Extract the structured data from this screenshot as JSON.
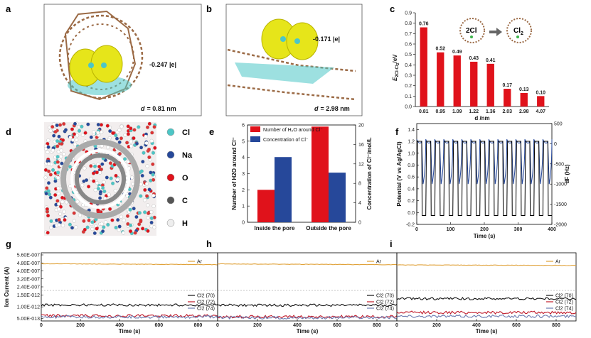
{
  "colors": {
    "red": "#e0121b",
    "blue": "#26489a",
    "ar": "#e0a23a",
    "cl70": "#111111",
    "cl72": "#c01a2a",
    "cl74": "#6b7bb0",
    "black": "#000000",
    "cyan": "#4cc6c6",
    "yellow": "#e6e51a",
    "brown": "#9b6a45"
  },
  "panels": {
    "a": {
      "label": "a",
      "charge": "-0.247 |e|",
      "d_prefix": "d",
      "d_value": "= 0.81 nm"
    },
    "b": {
      "label": "b",
      "charge": "-0.171 |e|",
      "d_prefix": "d",
      "d_value": "= 2.98 nm"
    },
    "c": {
      "label": "c",
      "inset_left": "2Cl",
      "inset_right": "Cl",
      "inset_right_sub": "2"
    },
    "d": {
      "label": "d",
      "legend": [
        {
          "name": "Cl",
          "color": "#4cc6c6"
        },
        {
          "name": "Na",
          "color": "#26489a"
        },
        {
          "name": "O",
          "color": "#e0121b"
        },
        {
          "name": "C",
          "color": "#555555"
        },
        {
          "name": "H",
          "color": "#eeeeee"
        }
      ]
    },
    "e": {
      "label": "e"
    },
    "f": {
      "label": "f"
    },
    "g": {
      "label": "g"
    },
    "h": {
      "label": "h"
    },
    "i": {
      "label": "i"
    }
  },
  "chart_data": [
    {
      "id": "c",
      "type": "bar",
      "categories": [
        "0.81",
        "0.95",
        "1.09",
        "1.22",
        "1.36",
        "2.03",
        "2.98",
        "4.07"
      ],
      "values": [
        0.76,
        0.52,
        0.49,
        0.43,
        0.41,
        0.17,
        0.13,
        0.1
      ],
      "value_labels": [
        "0.76",
        "0.52",
        "0.49",
        "0.43",
        "0.41",
        "0.17",
        "0.13",
        "0.10"
      ],
      "ylabel": "E2Cl-Cl2/eV",
      "ylabel_main": "E",
      "ylabel_sub": "2Cl-Cl",
      "ylabel_sub2": "2",
      "ylabel_unit": "/eV",
      "xlabel": "d /nm",
      "ylim": [
        0,
        0.9
      ],
      "yticks": [
        "0.0",
        "0.1",
        "0.2",
        "0.3",
        "0.4",
        "0.5",
        "0.6",
        "0.7",
        "0.8",
        "0.9"
      ]
    },
    {
      "id": "e",
      "type": "bar",
      "categories": [
        "Inside the pore",
        "Outside the pore"
      ],
      "series": [
        {
          "name": "Number of H2O around Cl⁻",
          "axis": "left",
          "values": [
            2.0,
            5.9
          ]
        },
        {
          "name": "Concentration of Cl⁻",
          "axis": "right",
          "values": [
            13.4,
            10.2
          ]
        }
      ],
      "legend": [
        "Number of H₂O around Cl⁻",
        "Concentration of Cl⁻"
      ],
      "ylabel_left": "Number of H2O around Cl⁻",
      "ylabel_right": "Concentration of Cl⁻/mol/L",
      "ylim_left": [
        0,
        6
      ],
      "ylim_right": [
        0,
        20
      ],
      "yticks_left": [
        "0",
        "1",
        "2",
        "3",
        "4",
        "5",
        "6"
      ],
      "yticks_right": [
        "0",
        "4",
        "8",
        "12",
        "16",
        "20"
      ]
    },
    {
      "id": "f",
      "type": "line",
      "xlabel": "Time (s)",
      "ylabel_left": "Potential (V vs Ag/AgCl)",
      "ylabel_right": "dF (Hz)",
      "xlim": [
        0,
        400
      ],
      "ylim_left": [
        -0.2,
        1.5
      ],
      "ylim_right": [
        -2000,
        500
      ],
      "xticks": [
        "0",
        "100",
        "200",
        "300",
        "400"
      ],
      "yticks_left": [
        "-0.2",
        "0.0",
        "0.2",
        "0.4",
        "0.6",
        "0.8",
        "1.0",
        "1.2",
        "1.4"
      ],
      "yticks_right": [
        "500",
        "0",
        "-500",
        "-1000",
        "-1500",
        "-2000"
      ],
      "cycles": 15,
      "series": [
        {
          "name": "Potential",
          "axis": "left",
          "high": 1.2,
          "low": -0.05
        },
        {
          "name": "dF",
          "axis": "right",
          "high": 110,
          "low": -1000
        }
      ]
    },
    {
      "id": "g",
      "type": "line",
      "xlabel": "Time (s)",
      "ylabel": "Ion Current (A)",
      "xlim": [
        0,
        900
      ],
      "xticks": [
        "0",
        "200",
        "400",
        "600",
        "800"
      ],
      "yticks": [
        "5.60E-007",
        "4.80E-007",
        "4.00E-007",
        "3.20E-007",
        "2.40E-007",
        "1.50E-012",
        "1.00E-012",
        "5.00E-013"
      ],
      "legend_top": [
        "Ar"
      ],
      "legend_bottom": [
        "Cl2 (70)",
        "Cl2 (72)",
        "Cl2 (74)"
      ],
      "series": [
        {
          "name": "Ar",
          "level": 4.72e-07,
          "end": 4.63e-07
        },
        {
          "name": "Cl2 (70)",
          "level": 1.08e-12
        },
        {
          "name": "Cl2 (72)",
          "level": 6.2e-13
        },
        {
          "name": "Cl2 (74)",
          "level": 5.7e-13
        }
      ]
    },
    {
      "id": "h",
      "type": "line",
      "xlabel": "Time (s)",
      "xlim": [
        0,
        900
      ],
      "xticks": [
        "0",
        "200",
        "400",
        "600",
        "800"
      ],
      "legend_top": [
        "Ar"
      ],
      "legend_bottom": [
        "Cl2 (70)",
        "Cl2 (72)",
        "Cl2 (74)"
      ],
      "series": [
        {
          "name": "Ar",
          "level": 4.7e-07,
          "end": 4.62e-07
        },
        {
          "name": "Cl2 (70)",
          "level": 1.07e-12
        },
        {
          "name": "Cl2 (72)",
          "level": 5.8e-13
        },
        {
          "name": "Cl2 (74)",
          "level": 5.4e-13
        }
      ]
    },
    {
      "id": "i",
      "type": "line",
      "xlabel": "Time (s)",
      "xlim": [
        0,
        900
      ],
      "xticks": [
        "0",
        "200",
        "400",
        "600",
        "800"
      ],
      "legend_top": [
        "Ar"
      ],
      "legend_bottom": [
        "Cl2 (70)",
        "Cl2 (72)",
        "Cl2 (74)"
      ],
      "series": [
        {
          "name": "Ar",
          "level": 4.6e-07,
          "end": 4.55e-07
        },
        {
          "name": "Cl2 (70)",
          "level": 1.35e-12
        },
        {
          "name": "Cl2 (72)",
          "level": 7.6e-13
        },
        {
          "name": "Cl2 (74)",
          "level": 6e-13
        }
      ]
    }
  ]
}
